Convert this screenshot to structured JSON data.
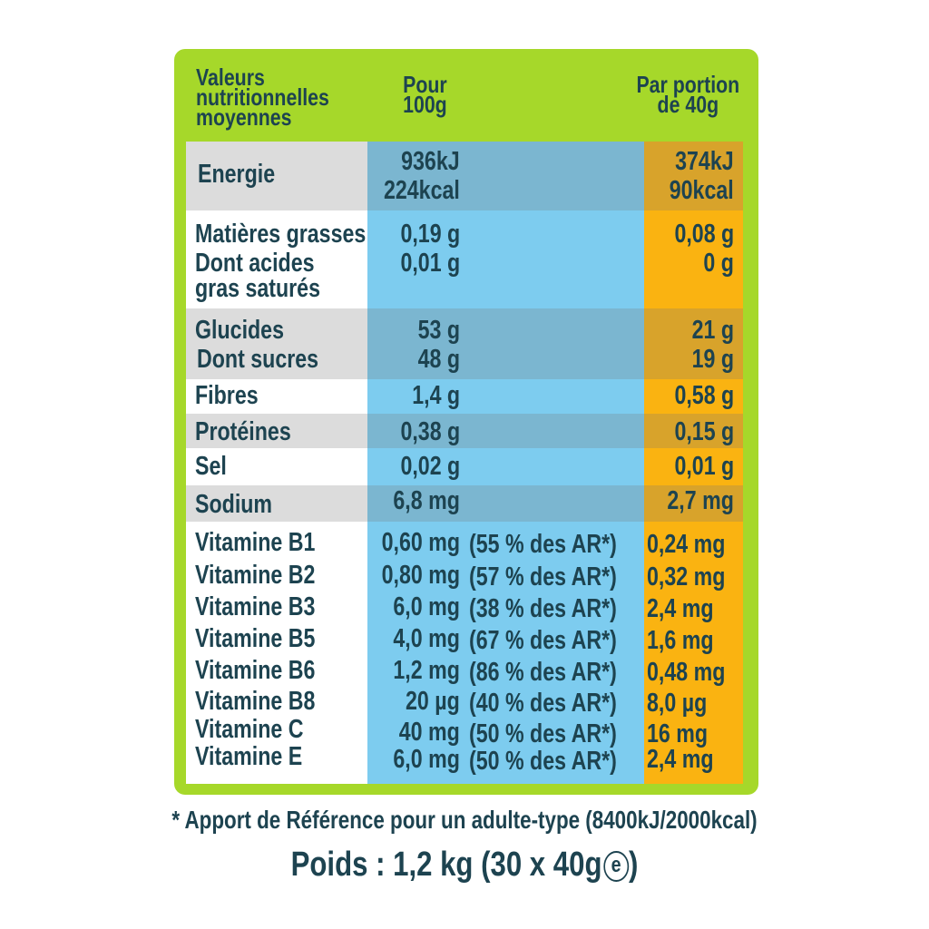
{
  "header": {
    "col1": [
      "Valeurs",
      "nutritionnelles",
      "moyennes"
    ],
    "col2": [
      "Pour",
      "100g"
    ],
    "col3": [
      "Par portion",
      "de 40g"
    ]
  },
  "rows": {
    "energie": {
      "label": "Energie",
      "v100": [
        "936kJ",
        "224kcal"
      ],
      "v40": [
        "374kJ",
        "90kcal"
      ]
    },
    "matieres": {
      "label": "Matières grasses",
      "v100": "0,19 g",
      "v40": "0,08 g"
    },
    "acides": {
      "label": [
        "Dont acides",
        "gras saturés"
      ],
      "v100": "0,01 g",
      "v40": "0 g"
    },
    "glucides": {
      "label": "Glucides",
      "v100": "53 g",
      "v40": "21 g"
    },
    "sucres": {
      "label": "Dont sucres",
      "v100": "48 g",
      "v40": "19 g"
    },
    "fibres": {
      "label": "Fibres",
      "v100": "1,4 g",
      "v40": "0,58 g"
    },
    "proteines": {
      "label": "Protéines",
      "v100": "0,38 g",
      "v40": "0,15 g"
    },
    "sel": {
      "label": "Sel",
      "v100": "0,02 g",
      "v40": "0,01 g"
    },
    "sodium": {
      "label": "Sodium",
      "v100": "6,8 mg",
      "v40": "2,7 mg"
    }
  },
  "vitamins": [
    {
      "name": "Vitamine B1",
      "v100": "0,60 mg",
      "ar": "(55 % des AR*)",
      "v40": "0,24 mg"
    },
    {
      "name": "Vitamine B2",
      "v100": "0,80 mg",
      "ar": "(57 % des AR*)",
      "v40": "0,32 mg"
    },
    {
      "name": "Vitamine B3",
      "v100": "6,0 mg",
      "ar": "(38 % des AR*)",
      "v40": "2,4 mg"
    },
    {
      "name": "Vitamine B5",
      "v100": "4,0 mg",
      "ar": "(67 % des AR*)",
      "v40": "1,6 mg"
    },
    {
      "name": "Vitamine B6",
      "v100": "1,2 mg",
      "ar": "(86 % des AR*)",
      "v40": "0,48 mg"
    },
    {
      "name": "Vitamine B8",
      "v100": "20 µg",
      "ar": "(40 % des AR*)",
      "v40": "8,0 µg"
    },
    {
      "name": "Vitamine C",
      "v100": "40 mg",
      "ar": "(50 % des AR*)",
      "v40": "16 mg"
    },
    {
      "name": "Vitamine E",
      "v100": "6,0 mg",
      "ar": "(50 % des AR*)",
      "v40": "2,4 mg"
    }
  ],
  "footnote": "* Apport de Référence pour un adulte-type (8400kJ/2000kcal)",
  "weight": {
    "text": "Poids : 1,2 kg (30 x 40g",
    "estimate_symbol": "e",
    "close": ")"
  },
  "colors": {
    "frame": "#a6d82a",
    "col_100g": "#7dccef",
    "col_40g": "#fab311",
    "text": "#1d4350"
  }
}
